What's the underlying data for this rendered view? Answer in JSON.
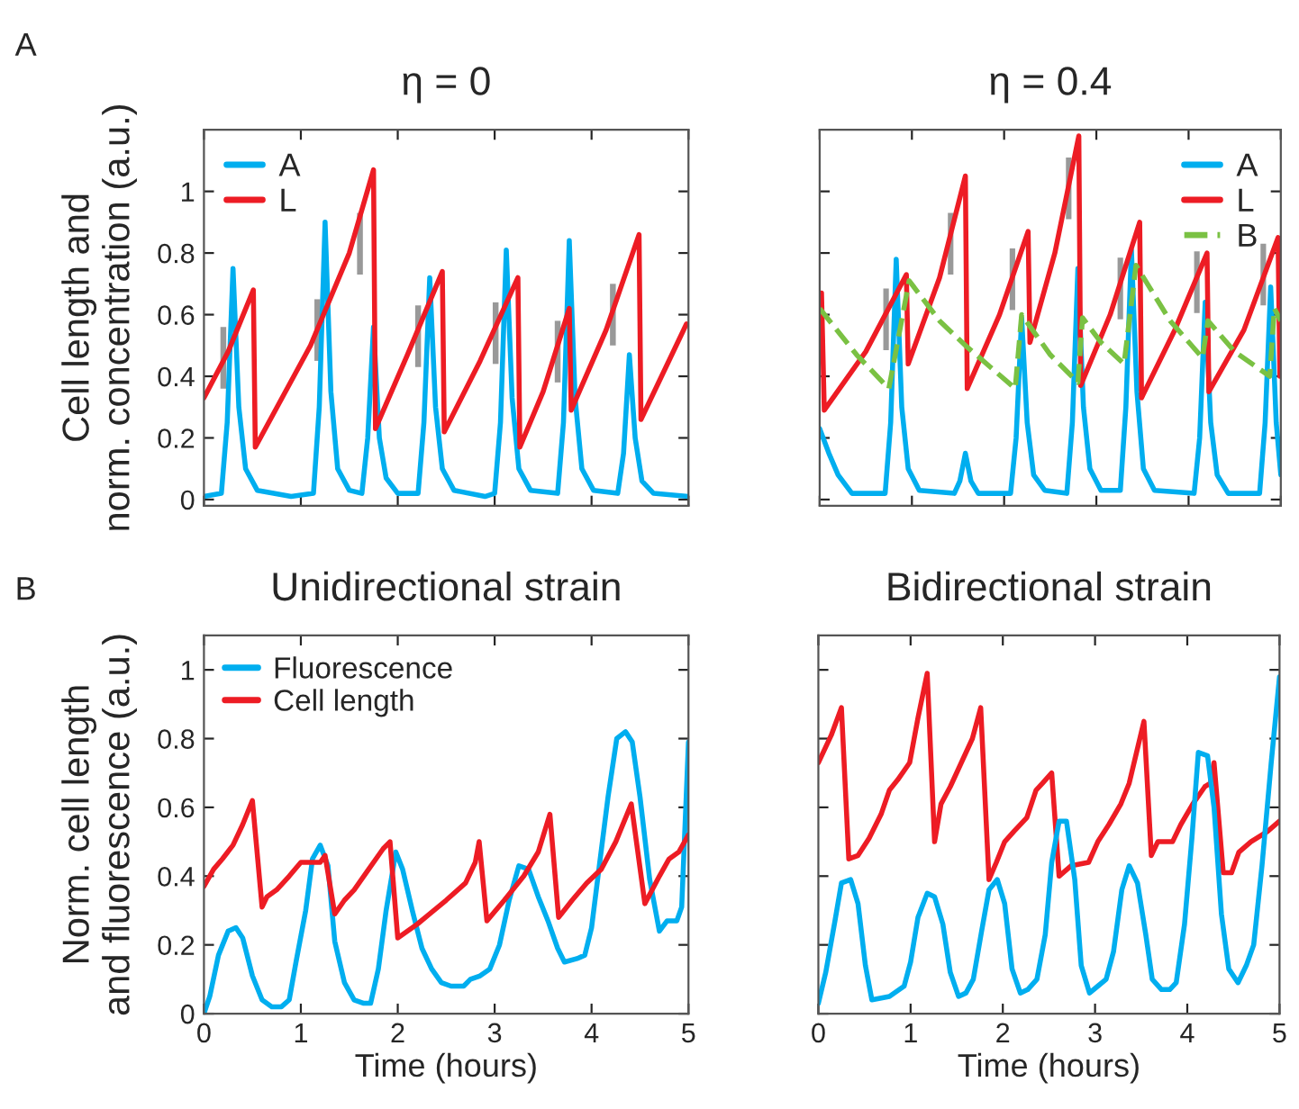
{
  "chart_data": [
    {
      "type": "line",
      "title": "η = 0",
      "ylabel": "Cell length and\nnorm. concentration (a.u.)",
      "annotations": [
        "A"
      ],
      "xlim": [
        0,
        5
      ],
      "xticks": [
        0,
        1,
        2,
        3,
        4,
        5
      ],
      "ylim": [
        -0.02,
        1.2
      ],
      "yticks": [
        0,
        0.2,
        0.4,
        0.6,
        0.8,
        1
      ],
      "tick_labels": "y",
      "grid": false,
      "legend": "top left",
      "marker": "none",
      "line_style": "solid",
      "series": [
        {
          "name": "A",
          "color": "#00aeef",
          "x": [
            0,
            0.18,
            0.24,
            0.3,
            0.36,
            0.43,
            0.55,
            0.9,
            1.13,
            1.19,
            1.25,
            1.31,
            1.38,
            1.5,
            1.63,
            1.69,
            1.75,
            1.81,
            1.88,
            2.0,
            2.21,
            2.27,
            2.33,
            2.39,
            2.46,
            2.58,
            2.9,
            3.0,
            3.06,
            3.12,
            3.18,
            3.25,
            3.37,
            3.65,
            3.71,
            3.77,
            3.83,
            3.9,
            4.02,
            4.27,
            4.33,
            4.39,
            4.45,
            4.52,
            4.64,
            5.0
          ],
          "values": [
            0.01,
            0.02,
            0.25,
            0.75,
            0.3,
            0.1,
            0.03,
            0.01,
            0.02,
            0.3,
            0.9,
            0.35,
            0.1,
            0.03,
            0.02,
            0.2,
            0.56,
            0.2,
            0.07,
            0.02,
            0.02,
            0.25,
            0.72,
            0.3,
            0.1,
            0.03,
            0.01,
            0.02,
            0.25,
            0.81,
            0.33,
            0.1,
            0.03,
            0.02,
            0.25,
            0.84,
            0.33,
            0.1,
            0.03,
            0.02,
            0.15,
            0.47,
            0.2,
            0.06,
            0.02,
            0.01
          ]
        },
        {
          "name": "L",
          "color": "#ed1c24",
          "x": [
            0,
            0.25,
            0.51,
            0.53,
            1.1,
            1.5,
            1.75,
            1.77,
            2.1,
            2.46,
            2.48,
            2.85,
            3.24,
            3.26,
            3.5,
            3.77,
            3.79,
            4.15,
            4.49,
            4.51,
            4.98
          ],
          "values": [
            0.33,
            0.48,
            0.68,
            0.17,
            0.5,
            0.8,
            1.07,
            0.23,
            0.47,
            0.74,
            0.22,
            0.45,
            0.72,
            0.17,
            0.35,
            0.62,
            0.29,
            0.55,
            0.86,
            0.26,
            0.57
          ]
        },
        {
          "type": "bar",
          "color": "#999999",
          "x": [
            0.2,
            1.17,
            1.61,
            2.21,
            3.01,
            3.65,
            4.22
          ],
          "base": [
            0.36,
            0.45,
            0.73,
            0.43,
            0.44,
            0.38,
            0.5
          ],
          "values": [
            0.2,
            0.2,
            0.2,
            0.2,
            0.2,
            0.2,
            0.2
          ]
        }
      ]
    },
    {
      "type": "line",
      "title": "η = 0.4",
      "xlim": [
        0,
        5
      ],
      "xticks": [
        0,
        1,
        2,
        3,
        4,
        5
      ],
      "ylim": [
        -0.02,
        1.2
      ],
      "yticks": [
        0,
        0.2,
        0.4,
        0.6,
        0.8,
        1
      ],
      "tick_labels": false,
      "grid": false,
      "legend": "top right",
      "marker": "none",
      "line_style": "solid",
      "series": [
        {
          "name": "A",
          "color": "#00aeef",
          "x": [
            0,
            0.1,
            0.2,
            0.35,
            0.71,
            0.77,
            0.83,
            0.89,
            0.96,
            1.08,
            1.46,
            1.52,
            1.58,
            1.64,
            1.72,
            2.07,
            2.13,
            2.19,
            2.25,
            2.32,
            2.44,
            2.68,
            2.74,
            2.8,
            2.86,
            2.93,
            3.05,
            3.26,
            3.32,
            3.38,
            3.44,
            3.51,
            3.63,
            4.06,
            4.12,
            4.18,
            4.24,
            4.31,
            4.43,
            4.77,
            4.83,
            4.89,
            4.95,
            5.0
          ],
          "values": [
            0.23,
            0.15,
            0.08,
            0.02,
            0.02,
            0.25,
            0.78,
            0.3,
            0.1,
            0.03,
            0.02,
            0.06,
            0.15,
            0.06,
            0.02,
            0.02,
            0.2,
            0.59,
            0.25,
            0.08,
            0.03,
            0.02,
            0.25,
            0.75,
            0.3,
            0.1,
            0.03,
            0.03,
            0.3,
            0.81,
            0.35,
            0.1,
            0.03,
            0.02,
            0.2,
            0.64,
            0.25,
            0.08,
            0.02,
            0.02,
            0.25,
            0.69,
            0.25,
            0.08
          ]
        },
        {
          "name": "L",
          "color": "#ed1c24",
          "x": [
            0,
            0.02,
            0.05,
            0.5,
            0.94,
            0.96,
            1.3,
            1.58,
            1.6,
            1.95,
            2.26,
            2.28,
            2.55,
            2.81,
            2.83,
            3.15,
            3.47,
            3.49,
            3.85,
            4.2,
            4.22,
            4.6,
            4.97,
            4.99
          ],
          "values": [
            0.67,
            0.67,
            0.29,
            0.48,
            0.73,
            0.44,
            0.72,
            1.05,
            0.36,
            0.6,
            0.87,
            0.51,
            0.8,
            1.18,
            0.37,
            0.6,
            0.9,
            0.33,
            0.55,
            0.8,
            0.35,
            0.55,
            0.85,
            0.4
          ]
        },
        {
          "name": "B",
          "color": "#7ac143",
          "line_style": "dashed",
          "x": [
            0,
            0.4,
            0.75,
            0.97,
            1.3,
            1.58,
            1.85,
            2.12,
            2.19,
            2.5,
            2.8,
            2.85,
            3.05,
            3.3,
            3.43,
            3.8,
            4.15,
            4.21,
            4.5,
            4.88,
            4.93,
            5.0
          ],
          "values": [
            0.62,
            0.47,
            0.36,
            0.71,
            0.58,
            0.5,
            0.43,
            0.36,
            0.6,
            0.47,
            0.38,
            0.59,
            0.51,
            0.44,
            0.76,
            0.58,
            0.46,
            0.58,
            0.48,
            0.4,
            0.62,
            0.58
          ]
        },
        {
          "type": "bar",
          "color": "#999999",
          "x": [
            0.72,
            1.42,
            2.09,
            2.7,
            3.26,
            4.09,
            4.81
          ],
          "base": [
            0.485,
            0.73,
            0.615,
            0.91,
            0.585,
            0.605,
            0.63
          ],
          "values": [
            0.2,
            0.2,
            0.2,
            0.2,
            0.2,
            0.2,
            0.2
          ]
        }
      ]
    },
    {
      "type": "line",
      "title": "Unidirectional strain",
      "xlabel": "Time (hours)",
      "ylabel": "Norm. cell length\nand fluorescence (a.u.)",
      "annotations": [
        "B"
      ],
      "xlim": [
        0,
        5
      ],
      "xticks": [
        0,
        1,
        2,
        3,
        4,
        5
      ],
      "ylim": [
        0,
        1.1
      ],
      "yticks": [
        0,
        0.2,
        0.4,
        0.6,
        0.8,
        1
      ],
      "grid": false,
      "legend": "top left",
      "marker": "none",
      "line_style": "solid",
      "series": [
        {
          "name": "Fluorescence",
          "color": "#00aeef",
          "x": [
            0,
            0.06,
            0.15,
            0.25,
            0.33,
            0.4,
            0.5,
            0.6,
            0.7,
            0.8,
            0.88,
            0.95,
            1.05,
            1.12,
            1.2,
            1.28,
            1.35,
            1.45,
            1.55,
            1.65,
            1.72,
            1.8,
            1.88,
            1.98,
            2.05,
            2.15,
            2.25,
            2.35,
            2.45,
            2.55,
            2.68,
            2.75,
            2.85,
            2.95,
            3.05,
            3.15,
            3.25,
            3.35,
            3.45,
            3.55,
            3.65,
            3.72,
            3.85,
            3.93,
            4.0,
            4.08,
            4.17,
            4.26,
            4.35,
            4.42,
            4.5,
            4.6,
            4.7,
            4.78,
            4.88,
            4.93,
            5.0
          ],
          "values": [
            0,
            0.05,
            0.17,
            0.24,
            0.25,
            0.22,
            0.11,
            0.04,
            0.02,
            0.02,
            0.04,
            0.15,
            0.3,
            0.45,
            0.49,
            0.43,
            0.21,
            0.09,
            0.04,
            0.03,
            0.03,
            0.13,
            0.3,
            0.47,
            0.42,
            0.3,
            0.19,
            0.13,
            0.09,
            0.08,
            0.08,
            0.1,
            0.11,
            0.13,
            0.2,
            0.33,
            0.43,
            0.42,
            0.34,
            0.27,
            0.19,
            0.15,
            0.16,
            0.17,
            0.25,
            0.43,
            0.63,
            0.8,
            0.82,
            0.79,
            0.63,
            0.39,
            0.24,
            0.27,
            0.27,
            0.31,
            0.79
          ]
        },
        {
          "name": "Cell length",
          "color": "#ed1c24",
          "x": [
            0,
            0.1,
            0.19,
            0.3,
            0.4,
            0.5,
            0.6,
            0.65,
            0.75,
            0.88,
            1.0,
            1.1,
            1.2,
            1.25,
            1.35,
            1.45,
            1.55,
            1.7,
            1.85,
            1.92,
            2.0,
            2.2,
            2.5,
            2.7,
            2.8,
            2.84,
            2.92,
            3.1,
            3.3,
            3.45,
            3.57,
            3.66,
            3.8,
            3.95,
            4.1,
            4.25,
            4.41,
            4.55,
            4.7,
            4.8,
            4.9,
            5.0
          ],
          "values": [
            0.37,
            0.42,
            0.45,
            0.49,
            0.55,
            0.62,
            0.31,
            0.34,
            0.36,
            0.4,
            0.44,
            0.44,
            0.44,
            0.46,
            0.29,
            0.33,
            0.36,
            0.42,
            0.48,
            0.5,
            0.22,
            0.26,
            0.33,
            0.38,
            0.44,
            0.5,
            0.27,
            0.33,
            0.4,
            0.47,
            0.58,
            0.28,
            0.33,
            0.38,
            0.42,
            0.5,
            0.61,
            0.32,
            0.4,
            0.45,
            0.47,
            0.52
          ]
        }
      ]
    },
    {
      "type": "line",
      "title": "Bidirectional strain",
      "xlabel": "Time (hours)",
      "xlim": [
        0,
        5
      ],
      "xticks": [
        0,
        1,
        2,
        3,
        4,
        5
      ],
      "ylim": [
        0,
        1.1
      ],
      "yticks": [
        0,
        0.2,
        0.4,
        0.6,
        0.8,
        1
      ],
      "tick_labels": "x",
      "grid": false,
      "marker": "none",
      "line_style": "solid",
      "series": [
        {
          "color": "#ed1c24",
          "x": [
            0,
            0.14,
            0.25,
            0.33,
            0.43,
            0.55,
            0.68,
            0.77,
            0.86,
            0.99,
            1.08,
            1.18,
            1.26,
            1.33,
            1.43,
            1.55,
            1.67,
            1.76,
            1.85,
            1.93,
            2.02,
            2.12,
            2.26,
            2.36,
            2.43,
            2.53,
            2.61,
            2.74,
            2.93,
            3.03,
            3.15,
            3.28,
            3.37,
            3.53,
            3.61,
            3.68,
            3.84,
            3.93,
            4.06,
            4.19,
            4.25,
            4.29,
            4.39,
            4.48,
            4.56,
            4.69,
            4.87,
            5.0
          ],
          "values": [
            0.73,
            0.81,
            0.89,
            0.45,
            0.46,
            0.51,
            0.58,
            0.65,
            0.68,
            0.73,
            0.86,
            0.99,
            0.5,
            0.61,
            0.66,
            0.73,
            0.8,
            0.89,
            0.39,
            0.44,
            0.5,
            0.53,
            0.57,
            0.65,
            0.67,
            0.7,
            0.4,
            0.43,
            0.44,
            0.5,
            0.55,
            0.61,
            0.67,
            0.85,
            0.46,
            0.5,
            0.5,
            0.55,
            0.61,
            0.66,
            0.67,
            0.73,
            0.41,
            0.41,
            0.47,
            0.5,
            0.53,
            0.56
          ]
        },
        {
          "color": "#00aeef",
          "x": [
            0,
            0.08,
            0.18,
            0.25,
            0.35,
            0.43,
            0.51,
            0.58,
            0.77,
            0.93,
            1.0,
            1.08,
            1.18,
            1.26,
            1.35,
            1.43,
            1.52,
            1.6,
            1.68,
            1.77,
            1.85,
            1.94,
            2.02,
            2.1,
            2.19,
            2.27,
            2.37,
            2.46,
            2.53,
            2.61,
            2.69,
            2.78,
            2.85,
            2.94,
            3.03,
            3.12,
            3.2,
            3.29,
            3.37,
            3.46,
            3.55,
            3.62,
            3.72,
            3.81,
            3.88,
            3.97,
            4.05,
            4.12,
            4.22,
            4.29,
            4.37,
            4.45,
            4.55,
            4.64,
            4.72,
            4.81,
            4.91,
            5.0
          ],
          "values": [
            0.03,
            0.12,
            0.27,
            0.38,
            0.39,
            0.32,
            0.14,
            0.04,
            0.05,
            0.08,
            0.15,
            0.28,
            0.35,
            0.34,
            0.26,
            0.12,
            0.05,
            0.06,
            0.1,
            0.24,
            0.36,
            0.39,
            0.32,
            0.13,
            0.06,
            0.07,
            0.1,
            0.23,
            0.44,
            0.56,
            0.56,
            0.39,
            0.14,
            0.06,
            0.08,
            0.1,
            0.18,
            0.36,
            0.43,
            0.38,
            0.23,
            0.1,
            0.07,
            0.07,
            0.09,
            0.26,
            0.51,
            0.76,
            0.75,
            0.6,
            0.29,
            0.13,
            0.09,
            0.14,
            0.2,
            0.43,
            0.73,
            0.98
          ]
        }
      ]
    }
  ]
}
